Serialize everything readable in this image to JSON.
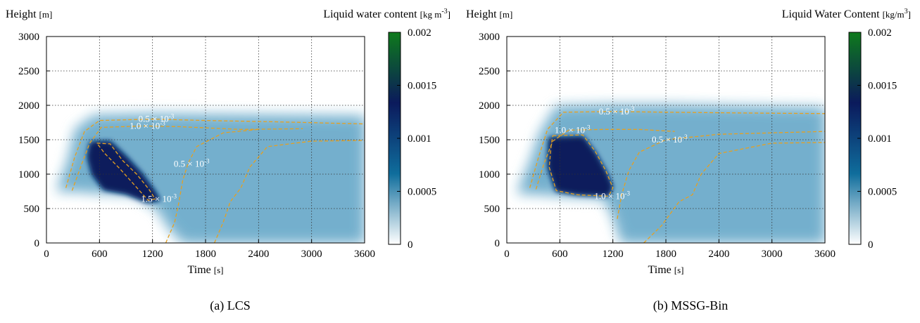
{
  "chart_data": [
    {
      "type": "heatmap",
      "caption": "(a) LCS",
      "ylabel_main": "Height",
      "ylabel_unit": "[m]",
      "xlabel_main": "Time",
      "xlabel_unit": "[s]",
      "colorbar_label_main": "Liquid water content",
      "colorbar_label_unit": "[kg m",
      "colorbar_label_exp": "-3",
      "colorbar_label_close": "]",
      "xlim": [
        0,
        3600
      ],
      "ylim": [
        0,
        3000
      ],
      "x_ticks": [
        "0",
        "600",
        "1200",
        "1800",
        "2400",
        "3000",
        "3600"
      ],
      "y_ticks": [
        "0",
        "500",
        "1000",
        "1500",
        "2000",
        "2500",
        "3000"
      ],
      "colorbar_ticks": [
        "0",
        "0.0005",
        "0.001",
        "0.0015",
        "0.002"
      ],
      "zlim": [
        0,
        0.002
      ],
      "grid": true,
      "colormap": [
        "#ffffff",
        "#0f6d9c",
        "#0b1a5c",
        "#0e7a1c"
      ],
      "contour_color": "#e6a020",
      "cloud_region": [
        [
          120,
          750
        ],
        [
          250,
          1200
        ],
        [
          330,
          1650
        ],
        [
          540,
          1850
        ],
        [
          1200,
          1870
        ],
        [
          1800,
          1860
        ],
        [
          3600,
          1840
        ],
        [
          3600,
          0
        ],
        [
          1650,
          0
        ],
        [
          1550,
          0
        ],
        [
          1400,
          200
        ],
        [
          1250,
          500
        ],
        [
          1000,
          700
        ],
        [
          600,
          730
        ],
        [
          300,
          760
        ]
      ],
      "contours": [
        {
          "level_text": "0.5 × 10",
          "level_exp": "-3",
          "points": [
            [
              220,
              800
            ],
            [
              320,
              1250
            ],
            [
              430,
              1620
            ],
            [
              600,
              1780
            ],
            [
              1200,
              1800
            ],
            [
              1800,
              1780
            ],
            [
              2600,
              1760
            ],
            [
              3600,
              1730
            ]
          ]
        },
        {
          "level_text": "",
          "level_exp": "",
          "points": [
            [
              1900,
              0
            ],
            [
              2000,
              300
            ],
            [
              2080,
              600
            ],
            [
              2200,
              800
            ],
            [
              2300,
              1100
            ],
            [
              2500,
              1400
            ],
            [
              3000,
              1480
            ],
            [
              3600,
              1490
            ]
          ]
        },
        {
          "level_text": "1.0 × 10",
          "level_exp": "-3",
          "points": [
            [
              290,
              760
            ],
            [
              400,
              1150
            ],
            [
              490,
              1450
            ],
            [
              620,
              1680
            ],
            [
              1100,
              1700
            ],
            [
              1500,
              1690
            ],
            [
              2200,
              1650
            ],
            [
              2900,
              1660
            ]
          ]
        },
        {
          "level_text": "0.5 × 10",
          "level_exp": "-3",
          "points": [
            [
              1350,
              0
            ],
            [
              1450,
              300
            ],
            [
              1500,
              600
            ],
            [
              1540,
              900
            ],
            [
              1600,
              1150
            ],
            [
              1700,
              1400
            ],
            [
              2000,
              1600
            ],
            [
              2400,
              1650
            ]
          ]
        },
        {
          "level_text": "1.5 × 10",
          "level_exp": "-3",
          "points": [
            [
              570,
              1450
            ],
            [
              720,
              1440
            ],
            [
              860,
              1200
            ],
            [
              1020,
              1000
            ],
            [
              1160,
              780
            ],
            [
              1230,
              640
            ],
            [
              1150,
              620
            ],
            [
              990,
              850
            ],
            [
              830,
              1080
            ],
            [
              660,
              1300
            ],
            [
              570,
              1450
            ]
          ]
        }
      ],
      "peak_region": [
        [
          500,
          1460
        ],
        [
          720,
          1470
        ],
        [
          900,
          1250
        ],
        [
          1080,
          1000
        ],
        [
          1220,
          750
        ],
        [
          1280,
          620
        ],
        [
          1140,
          600
        ],
        [
          900,
          720
        ],
        [
          650,
          780
        ],
        [
          520,
          1000
        ],
        [
          470,
          1250
        ]
      ]
    },
    {
      "type": "heatmap",
      "caption": "(b) MSSG-Bin",
      "ylabel_main": "Height",
      "ylabel_unit": "[m]",
      "xlabel_main": "Time",
      "xlabel_unit": "[s]",
      "colorbar_label_main": "Liquid Water Content",
      "colorbar_label_unit": "[kg/m",
      "colorbar_label_exp": "3",
      "colorbar_label_close": "]",
      "xlim": [
        0,
        3600
      ],
      "ylim": [
        0,
        3000
      ],
      "x_ticks": [
        "0",
        "600",
        "1200",
        "1800",
        "2400",
        "3000",
        "3600"
      ],
      "y_ticks": [
        "0",
        "500",
        "1000",
        "1500",
        "2000",
        "2500",
        "3000"
      ],
      "colorbar_ticks": [
        "0",
        "0.0005",
        "0.001",
        "0.0015",
        "0.002"
      ],
      "zlim": [
        0,
        0.002
      ],
      "grid": true,
      "colormap": [
        "#ffffff",
        "#0f6d9c",
        "#0b1a5c",
        "#0e7a1c"
      ],
      "contour_color": "#e6a020",
      "cloud_region": [
        [
          120,
          720
        ],
        [
          260,
          1150
        ],
        [
          380,
          1600
        ],
        [
          560,
          1980
        ],
        [
          1200,
          2000
        ],
        [
          1800,
          2000
        ],
        [
          3600,
          1960
        ],
        [
          3600,
          0
        ],
        [
          1650,
          0
        ],
        [
          1300,
          0
        ],
        [
          1200,
          400
        ],
        [
          1100,
          650
        ],
        [
          700,
          680
        ],
        [
          300,
          720
        ]
      ],
      "contours": [
        {
          "level_text": "0.5 × 10",
          "level_exp": "-3",
          "points": [
            [
              260,
              800
            ],
            [
              360,
              1250
            ],
            [
              460,
              1650
            ],
            [
              640,
              1900
            ],
            [
              1200,
              1910
            ],
            [
              1800,
              1900
            ],
            [
              2600,
              1890
            ],
            [
              3600,
              1880
            ]
          ]
        },
        {
          "level_text": "1.0 × 10",
          "level_exp": "-3",
          "points": [
            [
              330,
              780
            ],
            [
              420,
              1150
            ],
            [
              520,
              1480
            ],
            [
              700,
              1640
            ],
            [
              1100,
              1650
            ],
            [
              1500,
              1650
            ],
            [
              1900,
              1620
            ]
          ]
        },
        {
          "level_text": "0.5 × 10",
          "level_exp": "-3",
          "points": [
            [
              1250,
              350
            ],
            [
              1300,
              700
            ],
            [
              1380,
              1050
            ],
            [
              1500,
              1320
            ],
            [
              1800,
              1500
            ],
            [
              2400,
              1580
            ],
            [
              3000,
              1600
            ],
            [
              3600,
              1620
            ]
          ]
        },
        {
          "level_text": "",
          "level_exp": "",
          "points": [
            [
              1550,
              0
            ],
            [
              1750,
              250
            ],
            [
              1950,
              600
            ],
            [
              2100,
              700
            ],
            [
              2200,
              1000
            ],
            [
              2400,
              1300
            ],
            [
              3000,
              1450
            ],
            [
              3600,
              1460
            ]
          ]
        },
        {
          "level_text": "1.0 × 10",
          "level_exp": "-3",
          "points": [
            [
              520,
              1560
            ],
            [
              860,
              1570
            ],
            [
              1000,
              1330
            ],
            [
              1120,
              1050
            ],
            [
              1200,
              800
            ],
            [
              1150,
              680
            ],
            [
              800,
              700
            ],
            [
              560,
              760
            ],
            [
              480,
              1100
            ],
            [
              500,
              1400
            ],
            [
              520,
              1560
            ]
          ]
        }
      ],
      "peak_region": [
        [
          480,
          1520
        ],
        [
          860,
          1540
        ],
        [
          1000,
          1300
        ],
        [
          1110,
          1050
        ],
        [
          1190,
          820
        ],
        [
          1150,
          690
        ],
        [
          800,
          710
        ],
        [
          560,
          760
        ],
        [
          470,
          1100
        ]
      ]
    }
  ]
}
